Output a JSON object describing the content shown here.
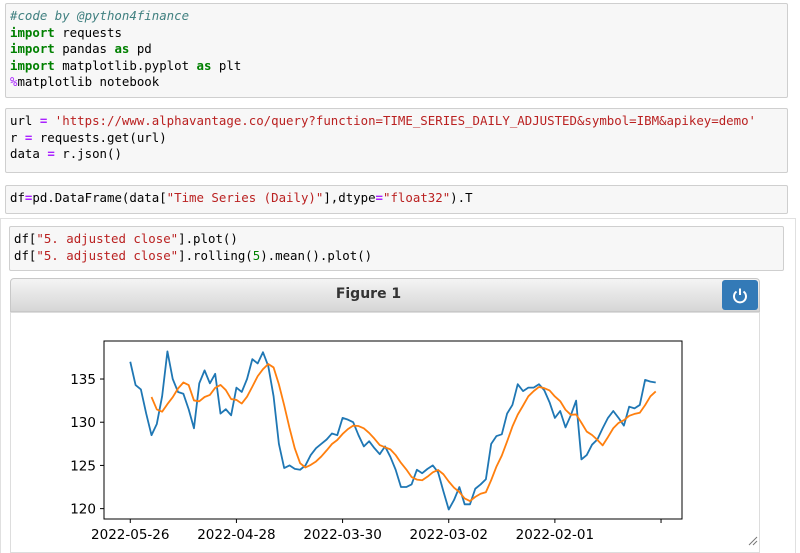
{
  "cells": [
    {
      "lines": [
        [
          "#code by @python4finance"
        ],
        [
          "import",
          " requests"
        ],
        [
          "import",
          " pandas ",
          "as",
          " pd"
        ],
        [
          "import",
          " matplotlib.pyplot ",
          "as",
          " plt"
        ],
        [
          "%",
          "matplotlib notebook"
        ]
      ]
    },
    {
      "lines": [
        [
          "url ",
          "=",
          " ",
          "'https://www.alphavantage.co/query?function=TIME_SERIES_DAILY_ADJUSTED&symbol=IBM&apikey=demo'"
        ],
        [
          "r ",
          "=",
          " requests.get(url)"
        ],
        [
          "data ",
          "=",
          " r.json()"
        ]
      ]
    },
    {
      "lines": [
        [
          "df",
          "=",
          "pd.DataFrame(data[",
          "\"Time Series (Daily)\"",
          "],dtype",
          "=",
          "\"float32\"",
          ").T"
        ]
      ]
    },
    {
      "lines": [
        [
          "df[",
          "\"5. adjusted close\"",
          "].plot()"
        ],
        [
          "df[",
          "\"5. adjusted close\"",
          "].rolling(",
          "5",
          ").mean().plot()"
        ]
      ]
    }
  ],
  "figure": {
    "title": "Figure 1"
  },
  "chart_data": {
    "type": "line",
    "categories": [
      "2022-05-26",
      null,
      null,
      null,
      null,
      null,
      null,
      null,
      null,
      null,
      null,
      null,
      null,
      null,
      null,
      null,
      null,
      null,
      null,
      null,
      "2022-04-28",
      null,
      null,
      null,
      null,
      null,
      null,
      null,
      null,
      null,
      null,
      null,
      null,
      null,
      null,
      null,
      null,
      null,
      null,
      null,
      "2022-03-30",
      null,
      null,
      null,
      null,
      null,
      null,
      null,
      null,
      null,
      null,
      null,
      null,
      null,
      null,
      null,
      null,
      null,
      null,
      null,
      "2022-03-02",
      null,
      null,
      null,
      null,
      null,
      null,
      null,
      null,
      null,
      null,
      null,
      null,
      null,
      null,
      null,
      null,
      null,
      null,
      null,
      "2022-02-01",
      null,
      null,
      null,
      null,
      null,
      null,
      null,
      null,
      null,
      null,
      null,
      null,
      null,
      null,
      null,
      null,
      null,
      null,
      null
    ],
    "series": [
      {
        "color": "#1f77b4",
        "values": [
          137.0,
          134.3,
          133.8,
          131.0,
          128.5,
          129.8,
          133.0,
          138.2,
          135.0,
          133.5,
          133.3,
          131.5,
          129.3,
          134.5,
          136.0,
          134.5,
          135.6,
          131.0,
          131.5,
          130.8,
          134.0,
          133.5,
          135.0,
          137.3,
          136.8,
          138.1,
          136.5,
          133.0,
          127.5,
          124.7,
          125.0,
          124.6,
          124.5,
          125.0,
          126.2,
          127.0,
          127.5,
          128.0,
          128.7,
          128.5,
          130.5,
          130.3,
          130.0,
          128.5,
          127.2,
          127.8,
          127.0,
          126.3,
          127.2,
          126.0,
          124.5,
          122.5,
          122.5,
          122.8,
          124.5,
          124.1,
          124.6,
          125.0,
          124.2,
          122.0,
          119.9,
          121.0,
          122.5,
          120.5,
          120.5,
          122.3,
          122.8,
          123.4,
          127.5,
          128.4,
          128.6,
          131.0,
          132.0,
          134.4,
          133.6,
          134.0,
          134.0,
          134.4,
          133.7,
          132.3,
          130.5,
          131.3,
          129.4,
          130.8,
          132.5,
          125.7,
          126.2,
          127.4,
          128.0,
          129.3,
          130.5,
          131.3,
          130.5,
          129.6,
          131.8,
          131.6,
          132.0,
          134.9,
          134.7,
          134.6
        ]
      },
      {
        "color": "#ff7f0e",
        "values": [
          null,
          null,
          null,
          null,
          132.92,
          131.48,
          131.22,
          132.1,
          132.9,
          133.9,
          134.6,
          134.3,
          132.52,
          132.42,
          132.92,
          133.16,
          133.98,
          134.32,
          133.72,
          132.68,
          132.58,
          132.16,
          132.96,
          134.12,
          135.32,
          136.14,
          136.74,
          136.34,
          134.38,
          131.96,
          129.34,
          126.96,
          125.26,
          124.76,
          125.06,
          125.46,
          126.04,
          126.74,
          127.48,
          127.94,
          128.64,
          129.2,
          129.6,
          129.56,
          129.3,
          128.76,
          128.1,
          127.36,
          127.1,
          126.86,
          126.2,
          125.3,
          124.54,
          123.66,
          123.36,
          123.28,
          123.7,
          124.2,
          124.48,
          123.98,
          123.14,
          122.42,
          121.92,
          121.18,
          120.88,
          121.36,
          121.72,
          121.9,
          123.3,
          124.88,
          126.14,
          127.78,
          129.5,
          130.88,
          131.92,
          133.0,
          133.6,
          134.08,
          133.94,
          133.68,
          132.98,
          132.44,
          131.44,
          130.86,
          130.9,
          129.94,
          128.92,
          128.52,
          127.96,
          127.32,
          128.28,
          129.3,
          129.92,
          130.24,
          130.74,
          130.96,
          131.1,
          131.98,
          133.0,
          133.56
        ]
      }
    ],
    "xlim": [
      -4.95,
      103.95
    ],
    "xticks": [
      0,
      20,
      40,
      60,
      80,
      100
    ],
    "ylim": [
      118.8,
      139.4
    ],
    "yticks": [
      120,
      125,
      130,
      135
    ]
  }
}
